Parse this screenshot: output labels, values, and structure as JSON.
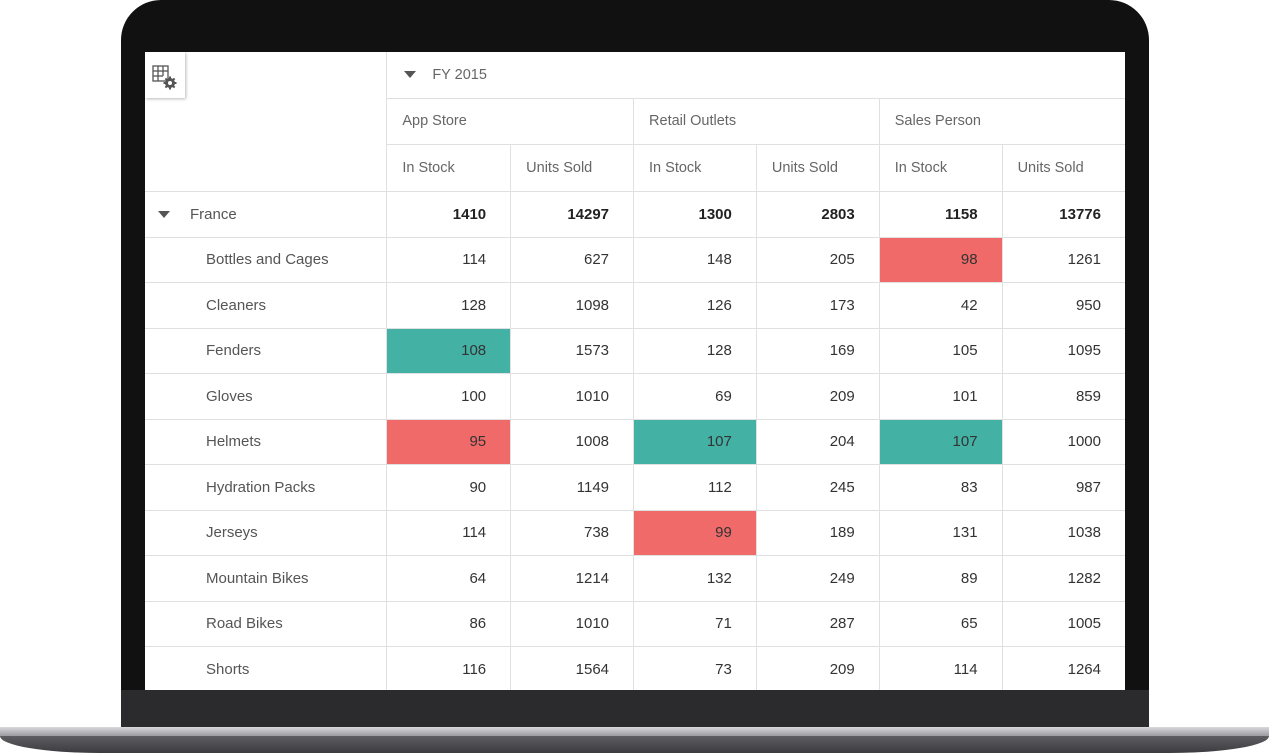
{
  "pivot": {
    "column_group": "FY 2015",
    "channels": [
      "App Store",
      "Retail Outlets",
      "Sales Person"
    ],
    "measures": [
      "In Stock",
      "Units Sold"
    ],
    "group": {
      "label": "France",
      "values": [
        "1410",
        "14297",
        "1300",
        "2803",
        "1158",
        "13776"
      ]
    },
    "rows": [
      {
        "label": "Bottles and Cages",
        "values": [
          "114",
          "627",
          "148",
          "205",
          "98",
          "1261"
        ],
        "highlight": [
          "",
          "",
          "",
          "",
          "red",
          ""
        ]
      },
      {
        "label": "Cleaners",
        "values": [
          "128",
          "1098",
          "126",
          "173",
          "42",
          "950"
        ],
        "highlight": [
          "",
          "",
          "",
          "",
          "",
          ""
        ]
      },
      {
        "label": "Fenders",
        "values": [
          "108",
          "1573",
          "128",
          "169",
          "105",
          "1095"
        ],
        "highlight": [
          "green",
          "",
          "",
          "",
          "",
          ""
        ]
      },
      {
        "label": "Gloves",
        "values": [
          "100",
          "1010",
          "69",
          "209",
          "101",
          "859"
        ],
        "highlight": [
          "",
          "",
          "",
          "",
          "",
          ""
        ]
      },
      {
        "label": "Helmets",
        "values": [
          "95",
          "1008",
          "107",
          "204",
          "107",
          "1000"
        ],
        "highlight": [
          "red",
          "",
          "green",
          "",
          "green",
          ""
        ]
      },
      {
        "label": "Hydration Packs",
        "values": [
          "90",
          "1149",
          "112",
          "245",
          "83",
          "987"
        ],
        "highlight": [
          "",
          "",
          "",
          "",
          "",
          ""
        ]
      },
      {
        "label": "Jerseys",
        "values": [
          "114",
          "738",
          "99",
          "189",
          "131",
          "1038"
        ],
        "highlight": [
          "",
          "",
          "red",
          "",
          "",
          ""
        ]
      },
      {
        "label": "Mountain Bikes",
        "values": [
          "64",
          "1214",
          "132",
          "249",
          "89",
          "1282"
        ],
        "highlight": [
          "",
          "",
          "",
          "",
          "",
          ""
        ]
      },
      {
        "label": "Road Bikes",
        "values": [
          "86",
          "1010",
          "71",
          "287",
          "65",
          "1005"
        ],
        "highlight": [
          "",
          "",
          "",
          "",
          "",
          ""
        ]
      },
      {
        "label": "Shorts",
        "values": [
          "116",
          "1564",
          "73",
          "209",
          "114",
          "1264"
        ],
        "highlight": [
          "",
          "",
          "",
          "",
          "",
          ""
        ]
      }
    ]
  },
  "icons": {
    "settings": "grid-settings-icon",
    "expand": "triangle-down-icon"
  },
  "colors": {
    "highlight_green": "#43b1a4",
    "highlight_red": "#ef6a69"
  }
}
